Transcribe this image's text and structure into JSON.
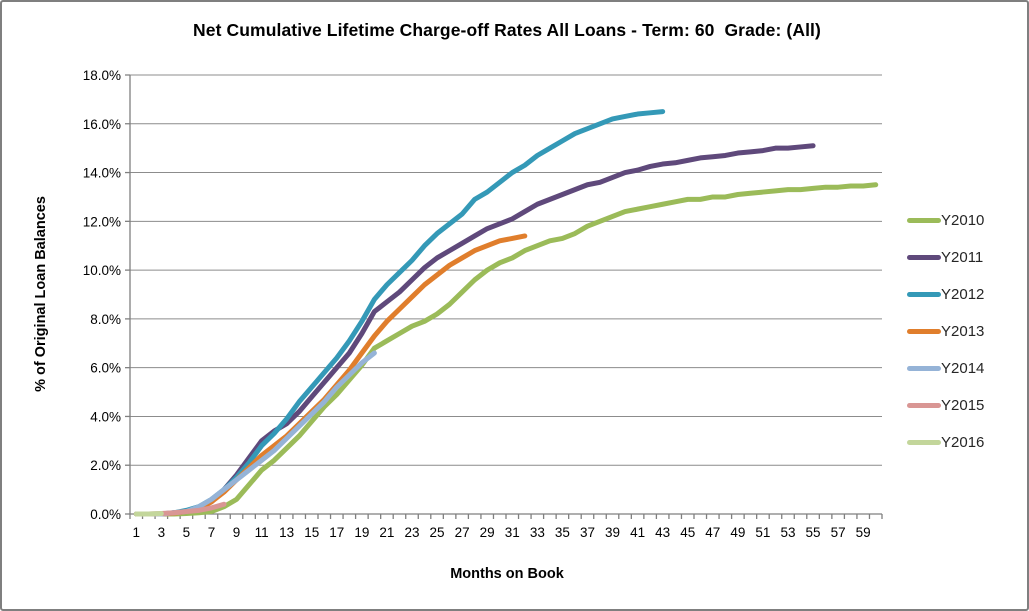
{
  "frame": {
    "background": "#FFFFFF",
    "border_color": "#7F7F7F"
  },
  "chart_data": {
    "type": "line",
    "title": "Net Cumulative Lifetime Charge-off Rates All Loans - Term: 60  Grade: (All)",
    "xlabel": "Months on Book",
    "ylabel": "% of Original Loan Balances",
    "xlim": [
      0,
      60
    ],
    "ylim": [
      0,
      18
    ],
    "y_tick_step": 2,
    "x_tick_labels": [
      "1",
      "3",
      "5",
      "7",
      "9",
      "11",
      "13",
      "15",
      "17",
      "19",
      "21",
      "23",
      "25",
      "27",
      "29",
      "31",
      "33",
      "35",
      "37",
      "39",
      "41",
      "43",
      "45",
      "47",
      "49",
      "51",
      "53",
      "55",
      "57",
      "59"
    ],
    "x_tick_label_months": [
      1,
      3,
      5,
      7,
      9,
      11,
      13,
      15,
      17,
      19,
      21,
      23,
      25,
      27,
      29,
      31,
      33,
      35,
      37,
      39,
      41,
      43,
      45,
      47,
      49,
      51,
      53,
      55,
      57,
      59
    ],
    "y_tick_labels": [
      "0.0%",
      "2.0%",
      "4.0%",
      "6.0%",
      "8.0%",
      "10.0%",
      "12.0%",
      "14.0%",
      "16.0%",
      "18.0%"
    ],
    "grid": "horizontal",
    "grid_color": "#8C8C8C",
    "axis_color": "#7F7F7F",
    "tick_label_color": "#000000",
    "legend_position": "right",
    "series": [
      {
        "name": "Y2010",
        "color": "#9BBB59",
        "start_month": 1,
        "values_pct": [
          0,
          0,
          0,
          0,
          0.02,
          0.05,
          0.1,
          0.3,
          0.6,
          1.2,
          1.8,
          2.2,
          2.7,
          3.2,
          3.8,
          4.4,
          4.9,
          5.5,
          6.1,
          6.8,
          7.1,
          7.4,
          7.7,
          7.9,
          8.2,
          8.6,
          9.1,
          9.6,
          10.0,
          10.3,
          10.5,
          10.8,
          11.0,
          11.2,
          11.3,
          11.5,
          11.8,
          12.0,
          12.2,
          12.4,
          12.5,
          12.6,
          12.7,
          12.8,
          12.9,
          12.9,
          13.0,
          13.0,
          13.1,
          13.15,
          13.2,
          13.25,
          13.3,
          13.3,
          13.35,
          13.4,
          13.4,
          13.45,
          13.45,
          13.5
        ]
      },
      {
        "name": "Y2011",
        "color": "#5F497B",
        "start_month": 1,
        "values_pct": [
          0,
          0,
          0,
          0.05,
          0.1,
          0.25,
          0.5,
          1.0,
          1.6,
          2.3,
          3.0,
          3.4,
          3.7,
          4.2,
          4.8,
          5.4,
          6.0,
          6.6,
          7.4,
          8.3,
          8.7,
          9.1,
          9.6,
          10.1,
          10.5,
          10.8,
          11.1,
          11.4,
          11.7,
          11.9,
          12.1,
          12.4,
          12.7,
          12.9,
          13.1,
          13.3,
          13.5,
          13.6,
          13.8,
          14.0,
          14.1,
          14.25,
          14.35,
          14.4,
          14.5,
          14.6,
          14.65,
          14.7,
          14.8,
          14.85,
          14.9,
          15.0,
          15.0,
          15.05,
          15.1
        ]
      },
      {
        "name": "Y2012",
        "color": "#3499B7",
        "start_month": 1,
        "values_pct": [
          0,
          0,
          0,
          0.05,
          0.15,
          0.3,
          0.6,
          1.0,
          1.5,
          2.1,
          2.8,
          3.3,
          3.9,
          4.6,
          5.2,
          5.8,
          6.4,
          7.1,
          7.9,
          8.8,
          9.4,
          9.9,
          10.4,
          11.0,
          11.5,
          11.9,
          12.3,
          12.9,
          13.2,
          13.6,
          14.0,
          14.3,
          14.7,
          15.0,
          15.3,
          15.6,
          15.8,
          16.0,
          16.2,
          16.3,
          16.4,
          16.45,
          16.5
        ]
      },
      {
        "name": "Y2013",
        "color": "#E07E2C",
        "start_month": 1,
        "values_pct": [
          0,
          0,
          0,
          0.03,
          0.1,
          0.2,
          0.5,
          0.9,
          1.4,
          1.9,
          2.4,
          2.8,
          3.2,
          3.7,
          4.2,
          4.7,
          5.3,
          5.9,
          6.6,
          7.3,
          7.9,
          8.4,
          8.9,
          9.4,
          9.8,
          10.2,
          10.5,
          10.8,
          11.0,
          11.2,
          11.3,
          11.4
        ]
      },
      {
        "name": "Y2014",
        "color": "#95B3D7",
        "start_month": 1,
        "values_pct": [
          0,
          0,
          0,
          0.05,
          0.1,
          0.3,
          0.6,
          1.0,
          1.4,
          1.8,
          2.2,
          2.6,
          3.1,
          3.6,
          4.1,
          4.6,
          5.2,
          5.7,
          6.2,
          6.6
        ]
      },
      {
        "name": "Y2015",
        "color": "#D99694",
        "start_month": 1,
        "values_pct": [
          0,
          0,
          0.02,
          0.05,
          0.1,
          0.15,
          0.25,
          0.4
        ]
      },
      {
        "name": "Y2016",
        "color": "#C3D69B",
        "start_month": 1,
        "values_pct": [
          0,
          0,
          0.02
        ]
      }
    ]
  }
}
